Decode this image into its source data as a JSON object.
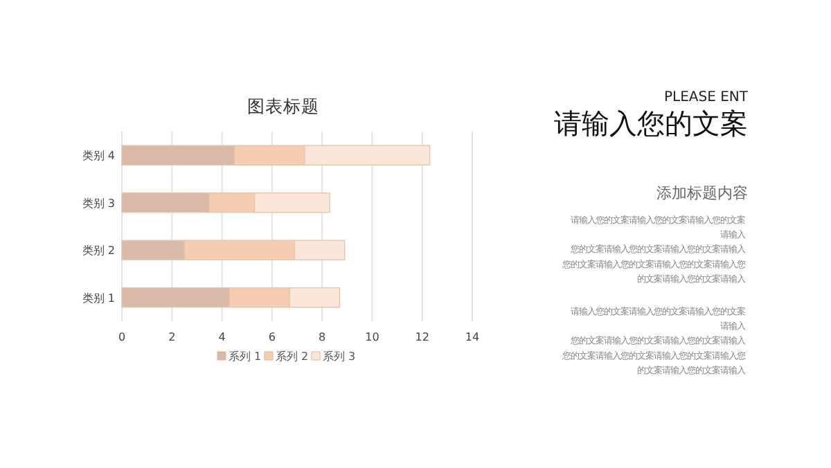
{
  "chart_data": {
    "type": "bar",
    "orientation": "horizontal",
    "stacked": true,
    "title": "图表标题",
    "categories": [
      "类别 4",
      "类别 3",
      "类别 2",
      "类别 1"
    ],
    "series": [
      {
        "name": "系列 1",
        "color": "#d9b9a8",
        "values": [
          4.5,
          3.5,
          2.5,
          4.3
        ]
      },
      {
        "name": "系列 2",
        "color": "#f6cdb0",
        "values": [
          2.8,
          1.8,
          4.4,
          2.4
        ]
      },
      {
        "name": "系列 3",
        "color": "#fbe6da",
        "values": [
          5,
          3,
          2,
          2
        ]
      }
    ],
    "xlim": [
      0,
      14
    ],
    "xticks": [
      0,
      2,
      4,
      6,
      8,
      10,
      12,
      14
    ],
    "grid": "x",
    "legend": "bottom",
    "annotations": [
      "PLEASE ENT",
      "请输入您的文案",
      "添加标题内容",
      "请输入您的文案请输入您的文案请输入您的文案",
      "请输入",
      "您的文案请输入您的文案请输入您的文案请输入",
      "您的文案请输入您的文案请输入您的文案请输入您",
      "的文案请输入您的文案请输入",
      "请输入您的文案请输入您的文案请输入您的文案",
      "请输入",
      "您的文案请输入您的文案请输入您的文案请输入",
      "您的文案请输入您的文案请输入您的文案请输入您",
      "的文案请输入您的文案请输入"
    ]
  }
}
